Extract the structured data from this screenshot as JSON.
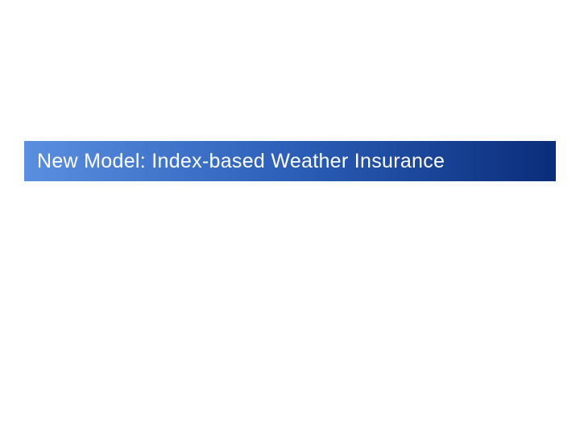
{
  "slide": {
    "title": "New Model: Index-based Weather Insurance",
    "background_color": "#ffffff",
    "title_box": {
      "gradient_start": "#5a8fe0",
      "gradient_mid": "#2c5fb8",
      "gradient_end": "#0a2d7a",
      "text_color": "#ffffff",
      "font_size": 25,
      "font_family": "Trebuchet MS"
    }
  }
}
